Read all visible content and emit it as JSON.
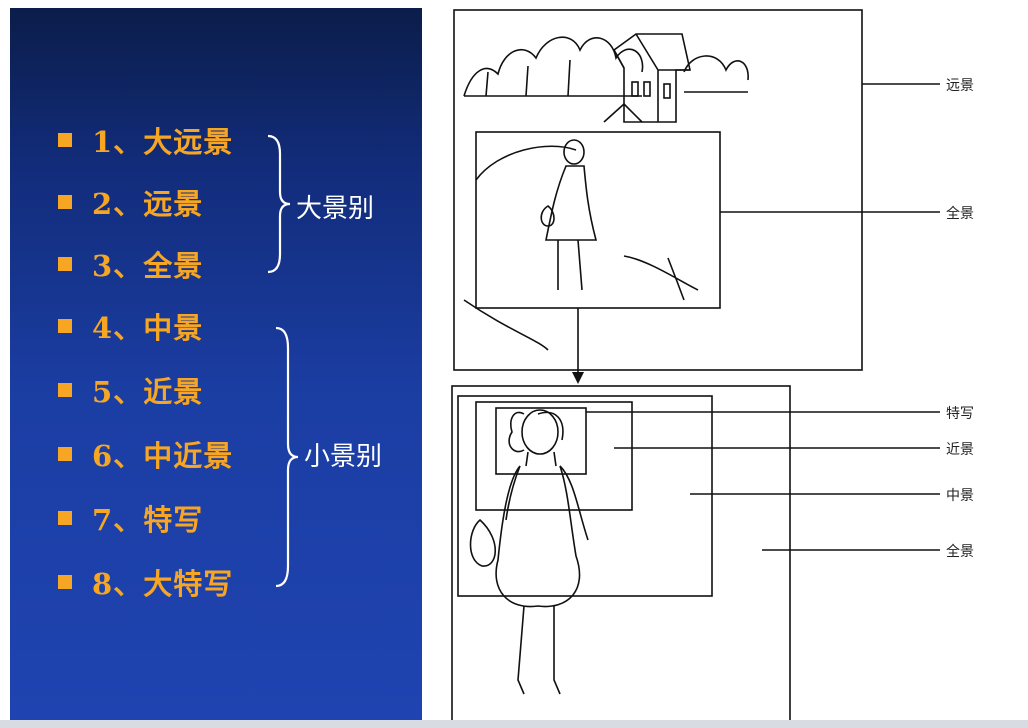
{
  "list": {
    "items": [
      {
        "num": "1、",
        "label": "大远景"
      },
      {
        "num": "2、",
        "label": "远景"
      },
      {
        "num": "3、",
        "label": "全景"
      },
      {
        "num": "4、",
        "label": "中景"
      },
      {
        "num": "5、",
        "label": "近景"
      },
      {
        "num": "6、",
        "label": "中近景"
      },
      {
        "num": "7、",
        "label": "特写"
      },
      {
        "num": "8、",
        "label": "大特写"
      }
    ],
    "groups": [
      {
        "label": "大景别"
      },
      {
        "label": "小景别"
      }
    ]
  },
  "diagram": {
    "labels": {
      "far": "远景",
      "full_top": "全景",
      "closeup": "特写",
      "close": "近景",
      "medium": "中景",
      "full_bottom": "全景"
    }
  },
  "colors": {
    "item_text": "#f6a623",
    "group_text": "#ffffff",
    "panel_dark": "#0b1d4a",
    "panel_light": "#1f43b0"
  }
}
